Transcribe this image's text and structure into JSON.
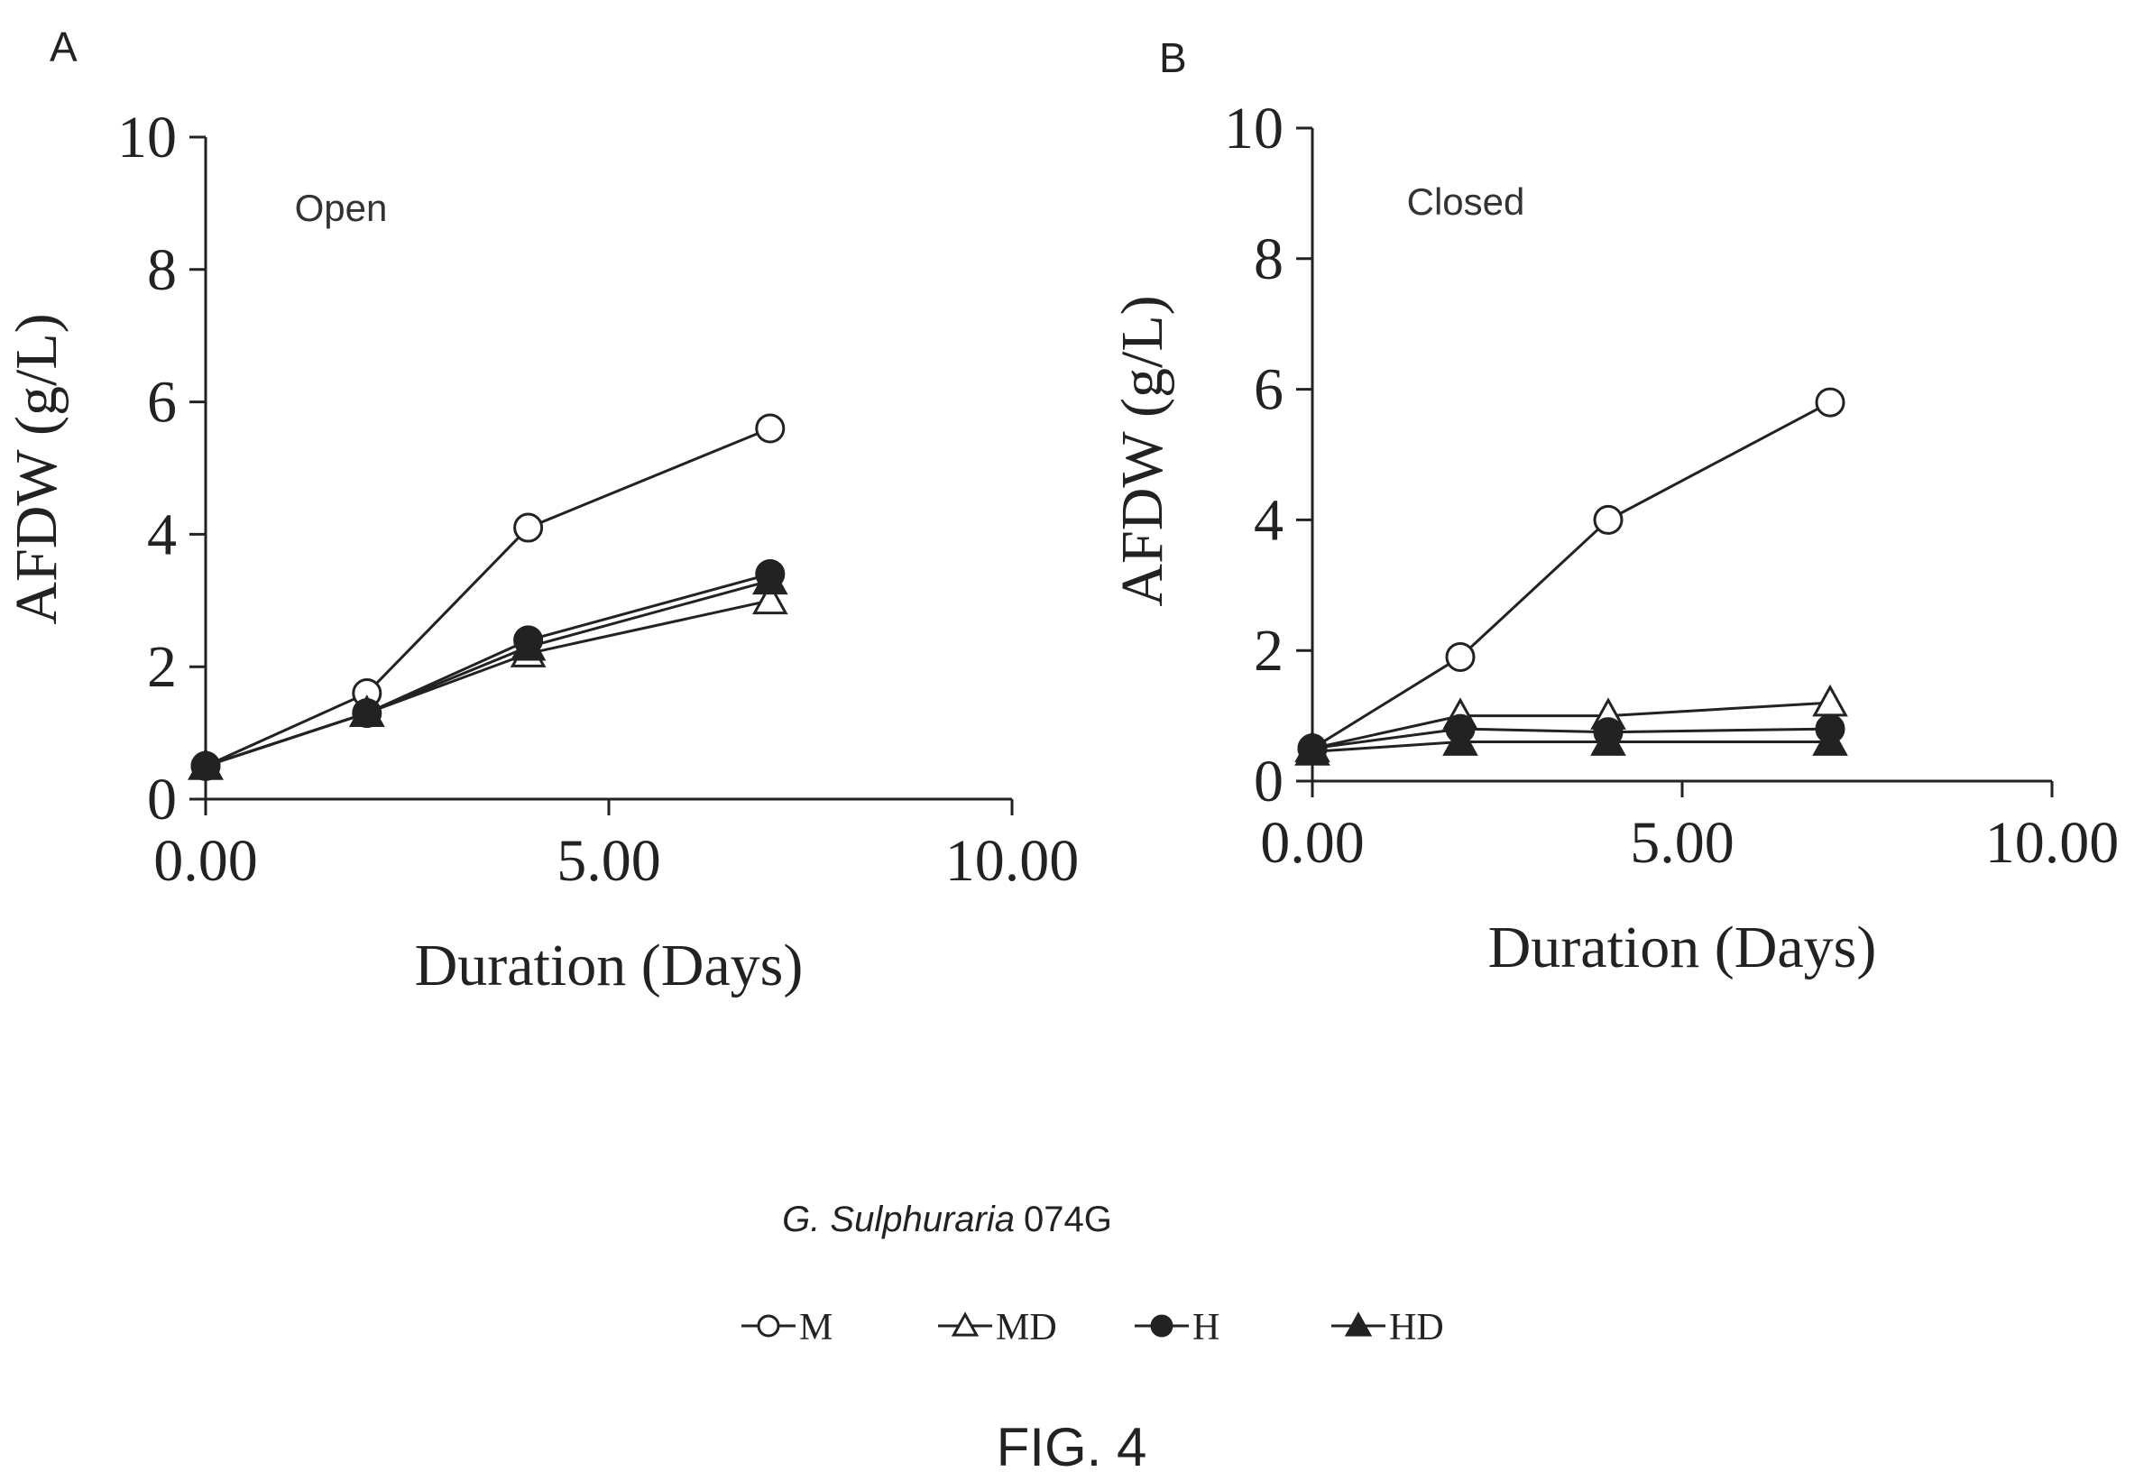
{
  "chart_data": [
    {
      "type": "line",
      "panel_letter": "A",
      "annotation": "Open",
      "xlabel": "Duration (Days)",
      "ylabel": "AFDW (g/L)",
      "xlim": [
        0,
        10
      ],
      "ylim": [
        0,
        10
      ],
      "x_ticks": [
        "0.00",
        "5.00",
        "10.00"
      ],
      "y_ticks": [
        "0",
        "2",
        "4",
        "6",
        "8",
        "10"
      ],
      "x": [
        0,
        2,
        4,
        7
      ],
      "series": [
        {
          "name": "M",
          "marker": "open-circle",
          "values": [
            0.5,
            1.6,
            4.1,
            5.6
          ]
        },
        {
          "name": "MD",
          "marker": "open-triangle",
          "values": [
            0.5,
            1.3,
            2.2,
            3.0
          ]
        },
        {
          "name": "H",
          "marker": "filled-circle",
          "values": [
            0.5,
            1.3,
            2.4,
            3.4
          ]
        },
        {
          "name": "HD",
          "marker": "filled-triangle",
          "values": [
            0.5,
            1.3,
            2.3,
            3.3
          ]
        }
      ]
    },
    {
      "type": "line",
      "panel_letter": "B",
      "annotation": "Closed",
      "xlabel": "Duration (Days)",
      "ylabel": "AFDW (g/L)",
      "xlim": [
        0,
        10
      ],
      "ylim": [
        0,
        10
      ],
      "x_ticks": [
        "0.00",
        "5.00",
        "10.00"
      ],
      "y_ticks": [
        "0",
        "2",
        "4",
        "6",
        "8",
        "10"
      ],
      "x": [
        0,
        2,
        4,
        7
      ],
      "series": [
        {
          "name": "M",
          "marker": "open-circle",
          "values": [
            0.5,
            1.9,
            4.0,
            5.8
          ]
        },
        {
          "name": "MD",
          "marker": "open-triangle",
          "values": [
            0.5,
            1.0,
            1.0,
            1.2
          ]
        },
        {
          "name": "H",
          "marker": "filled-circle",
          "values": [
            0.5,
            0.8,
            0.75,
            0.8
          ]
        },
        {
          "name": "HD",
          "marker": "filled-triangle",
          "values": [
            0.45,
            0.6,
            0.6,
            0.6
          ]
        }
      ]
    }
  ],
  "caption": {
    "species": "G. Sulphuraria",
    "strain": "074G"
  },
  "legend": {
    "placement": "bottom-center",
    "items": [
      {
        "label": "M",
        "marker": "open-circle"
      },
      {
        "label": "MD",
        "marker": "open-triangle"
      },
      {
        "label": "H",
        "marker": "filled-circle"
      },
      {
        "label": "HD",
        "marker": "filled-triangle"
      }
    ]
  },
  "figure_label": "FIG. 4",
  "colors": {
    "ink": "#222222",
    "marker_fill_open": "#ffffff"
  }
}
